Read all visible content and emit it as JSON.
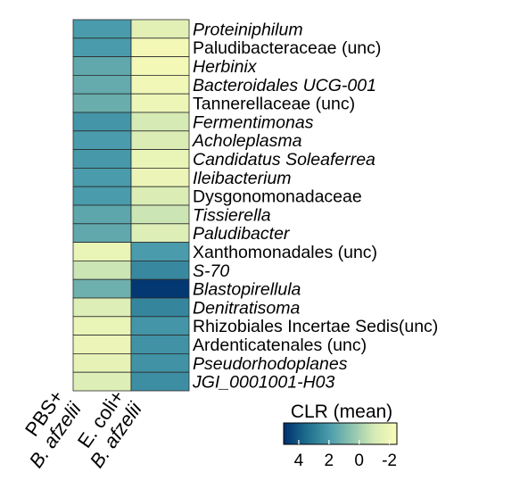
{
  "chart_data": {
    "type": "heatmap",
    "columns": [
      {
        "line1": "PBS+",
        "line2": "B. afzelii"
      },
      {
        "line1": "E. coli+",
        "line2": "B. afzelii"
      }
    ],
    "rows": [
      {
        "label": "Proteiniphilum",
        "italic": true
      },
      {
        "label": "Paludibacteraceae (unc)",
        "italic": false
      },
      {
        "label": "Herbinix",
        "italic": true
      },
      {
        "label": "Bacteroidales UCG-001",
        "italic": true
      },
      {
        "label": "Tannerellaceae (unc)",
        "italic": false
      },
      {
        "label": "Fermentimonas",
        "italic": true
      },
      {
        "label": "Acholeplasma",
        "italic": true
      },
      {
        "label": "Candidatus Soleaferrea",
        "italic": true
      },
      {
        "label": "Ileibacterium",
        "italic": true
      },
      {
        "label": "Dysgonomonadaceae",
        "italic": false
      },
      {
        "label": "Tissierella",
        "italic": true
      },
      {
        "label": "Paludibacter",
        "italic": true
      },
      {
        "label": "Xanthomonadales (unc)",
        "italic": false
      },
      {
        "label": "S-70",
        "italic": true
      },
      {
        "label": "Blastopirellula",
        "italic": true
      },
      {
        "label": "Denitratisoma",
        "italic": true
      },
      {
        "label": "Rhizobiales Incertae Sedis(unc)",
        "italic": false
      },
      {
        "label": "Ardenticatenales (unc)",
        "italic": false
      },
      {
        "label": "Pseudorhodoplanes",
        "italic": true
      },
      {
        "label": "JGI_0001001-H03",
        "italic": true
      }
    ],
    "values": [
      [
        2.0,
        -1.5
      ],
      [
        2.0,
        -2.2
      ],
      [
        1.5,
        -2.2
      ],
      [
        1.4,
        -2.1
      ],
      [
        1.3,
        -2.0
      ],
      [
        2.2,
        -1.0
      ],
      [
        2.0,
        -1.2
      ],
      [
        2.1,
        -1.8
      ],
      [
        2.0,
        -1.9
      ],
      [
        2.0,
        -1.2
      ],
      [
        1.6,
        -0.8
      ],
      [
        1.5,
        -1.3
      ],
      [
        -1.8,
        2.0
      ],
      [
        -0.8,
        2.6
      ],
      [
        1.2,
        4.8
      ],
      [
        -1.3,
        2.7
      ],
      [
        -1.8,
        2.2
      ],
      [
        -1.9,
        2.3
      ],
      [
        -1.7,
        2.3
      ],
      [
        -1.3,
        2.4
      ]
    ],
    "legend": {
      "title": "CLR (mean)",
      "range": [
        5,
        -2.5
      ],
      "ticks": [
        4,
        2,
        0,
        -2
      ],
      "tick_labels": [
        "4",
        "2",
        "0",
        "-2"
      ],
      "colors": [
        "#00306e",
        "#1e6c8c",
        "#4a9bab",
        "#8dc3af",
        "#d6eab5",
        "#fafcb8"
      ],
      "placement": "bottom-right"
    }
  }
}
